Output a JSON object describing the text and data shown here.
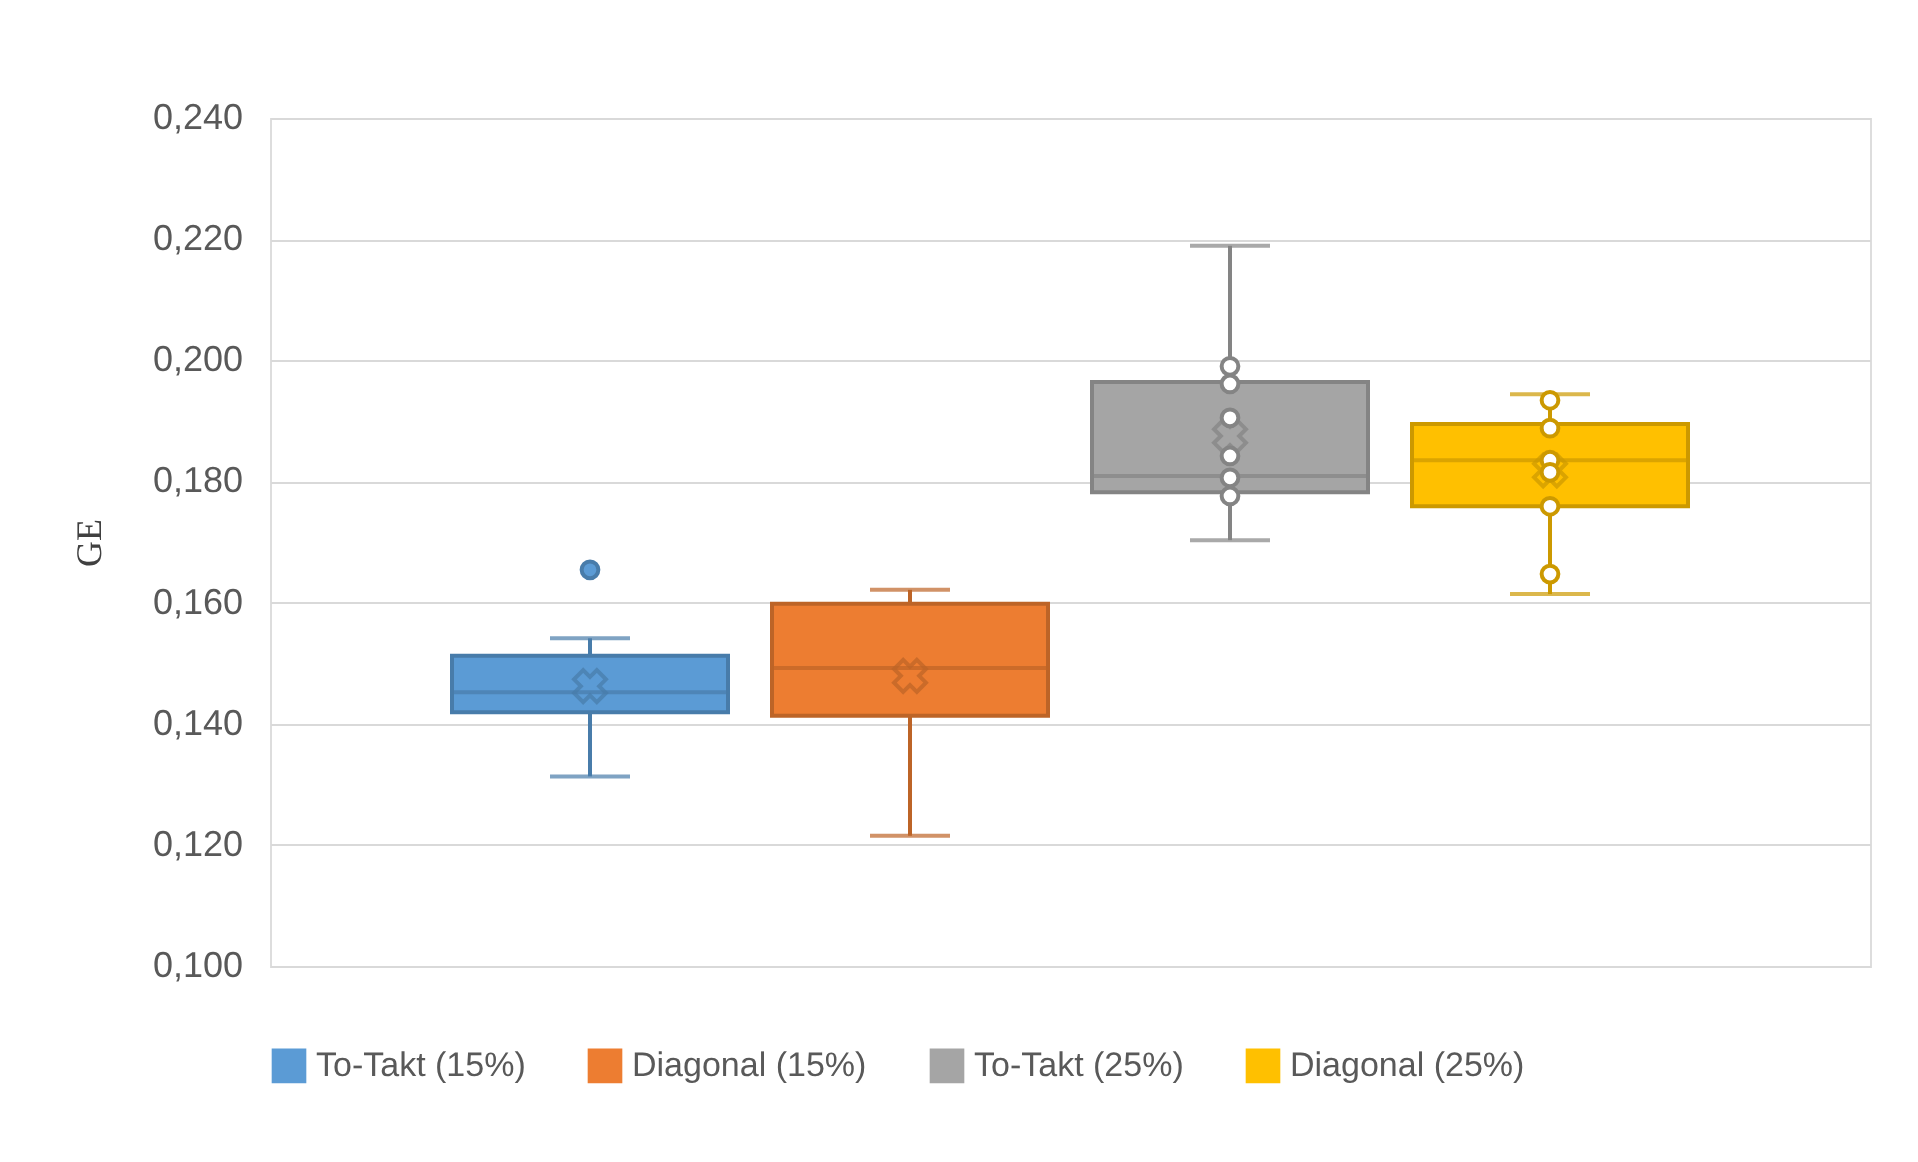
{
  "chart_data": {
    "type": "box",
    "ylabel": "GE",
    "categories": [
      null
    ],
    "ylim": [
      0.1,
      0.24
    ],
    "yticks": [
      {
        "value": 0.1,
        "label": "0,100"
      },
      {
        "value": 0.12,
        "label": "0,120"
      },
      {
        "value": 0.14,
        "label": "0,140"
      },
      {
        "value": 0.16,
        "label": "0,160"
      },
      {
        "value": 0.18,
        "label": "0,180"
      },
      {
        "value": 0.2,
        "label": "0,200"
      },
      {
        "value": 0.22,
        "label": "0,220"
      },
      {
        "value": 0.24,
        "label": "0,240"
      }
    ],
    "grid": "y",
    "legend": "bottom",
    "series": [
      {
        "name": "To-Takt (15%)",
        "color": "#5b9bd5",
        "boxes": [
          {
            "low": 0.1313,
            "q1": 0.1419,
            "median": 0.1452,
            "q3": 0.1512,
            "high": 0.1541,
            "mean": 0.1462,
            "outliers": [
              0.1654
            ]
          }
        ]
      },
      {
        "name": "Diagonal (15%)",
        "color": "#ed7d31",
        "boxes": [
          {
            "low": 0.1215,
            "q1": 0.1413,
            "median": 0.1492,
            "q3": 0.1598,
            "high": 0.1621,
            "mean": 0.1479
          }
        ]
      },
      {
        "name": "To-Takt (25%)",
        "color": "#a5a5a5",
        "boxes": [
          {
            "low": 0.1703,
            "q1": 0.1782,
            "median": 0.1809,
            "q3": 0.1964,
            "high": 0.2189,
            "mean": 0.1875,
            "outliers": [
              0.199,
              0.1961,
              0.1905,
              0.1842,
              0.1806,
              0.1776
            ]
          }
        ]
      },
      {
        "name": "Diagonal (25%)",
        "color": "#ffc000",
        "boxes": [
          {
            "low": 0.1614,
            "q1": 0.1759,
            "median": 0.1835,
            "q3": 0.1895,
            "high": 0.1944,
            "mean": 0.1818,
            "outliers": [
              0.1934,
              0.1888,
              0.1835,
              0.1815,
              0.1759,
              0.1647
            ]
          }
        ]
      }
    ]
  }
}
